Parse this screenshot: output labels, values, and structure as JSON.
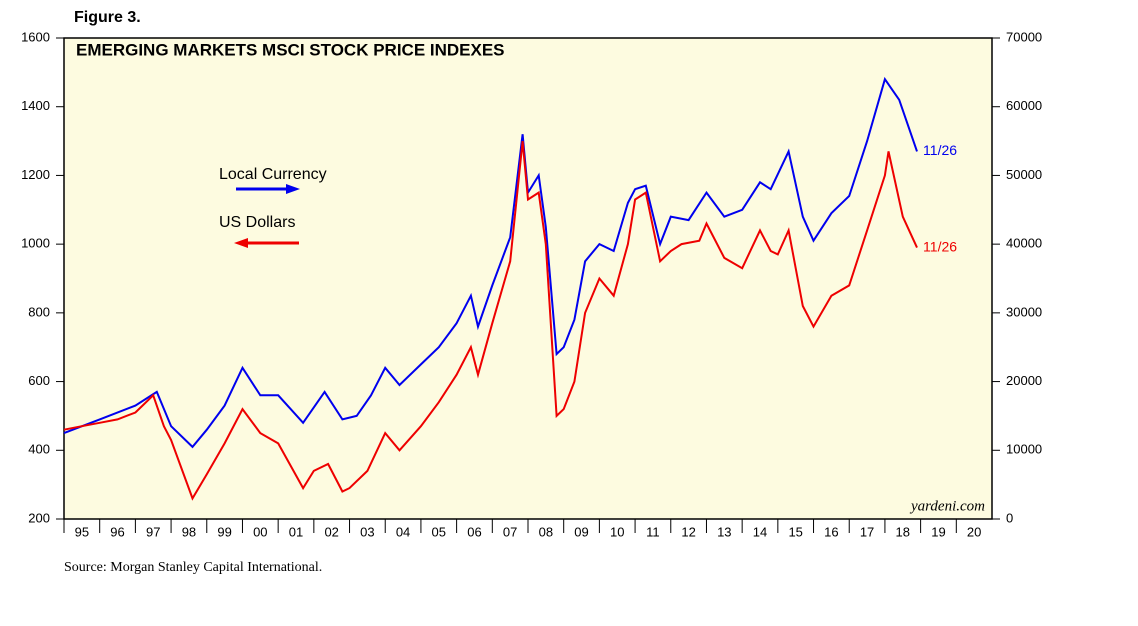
{
  "figure_label": "Figure 3.",
  "source": "Source: Morgan Stanley Capital International.",
  "chart_data": {
    "type": "line",
    "title": "EMERGING MARKETS MSCI STOCK PRICE INDEXES",
    "watermark": "yardeni.com",
    "background": "#fdfbe0",
    "xlim": [
      1995,
      2021
    ],
    "xticks": [
      {
        "value": 1995,
        "label": "95"
      },
      {
        "value": 1996,
        "label": "96"
      },
      {
        "value": 1997,
        "label": "97"
      },
      {
        "value": 1998,
        "label": "98"
      },
      {
        "value": 1999,
        "label": "99"
      },
      {
        "value": 2000,
        "label": "00"
      },
      {
        "value": 2001,
        "label": "01"
      },
      {
        "value": 2002,
        "label": "02"
      },
      {
        "value": 2003,
        "label": "03"
      },
      {
        "value": 2004,
        "label": "04"
      },
      {
        "value": 2005,
        "label": "05"
      },
      {
        "value": 2006,
        "label": "06"
      },
      {
        "value": 2007,
        "label": "07"
      },
      {
        "value": 2008,
        "label": "08"
      },
      {
        "value": 2009,
        "label": "09"
      },
      {
        "value": 2010,
        "label": "10"
      },
      {
        "value": 2011,
        "label": "11"
      },
      {
        "value": 2012,
        "label": "12"
      },
      {
        "value": 2013,
        "label": "13"
      },
      {
        "value": 2014,
        "label": "14"
      },
      {
        "value": 2015,
        "label": "15"
      },
      {
        "value": 2016,
        "label": "16"
      },
      {
        "value": 2017,
        "label": "17"
      },
      {
        "value": 2018,
        "label": "18"
      },
      {
        "value": 2019,
        "label": "19"
      },
      {
        "value": 2020,
        "label": "20"
      }
    ],
    "ylim": [
      200,
      1600
    ],
    "yticks": [
      200,
      400,
      600,
      800,
      1000,
      1200,
      1400,
      1600
    ],
    "y2lim": [
      0,
      70000
    ],
    "y2ticks": [
      0,
      10000,
      20000,
      30000,
      40000,
      50000,
      60000,
      70000
    ],
    "series": [
      {
        "name": "Local Currency",
        "color": "#0000ee",
        "axis": "y2",
        "end_label": "11/26",
        "x": [
          1995.0,
          1996.0,
          1997.0,
          1997.6,
          1998.0,
          1998.6,
          1999.0,
          1999.5,
          2000.0,
          2000.5,
          2001.0,
          2001.7,
          2002.3,
          2002.8,
          2003.2,
          2003.6,
          2004.0,
          2004.4,
          2005.0,
          2005.5,
          2006.0,
          2006.4,
          2006.6,
          2007.0,
          2007.5,
          2007.85,
          2008.0,
          2008.3,
          2008.5,
          2008.8,
          2009.0,
          2009.3,
          2009.6,
          2010.0,
          2010.4,
          2010.8,
          2011.0,
          2011.3,
          2011.7,
          2012.0,
          2012.5,
          2013.0,
          2013.5,
          2014.0,
          2014.5,
          2014.8,
          2015.3,
          2015.7,
          2016.0,
          2016.5,
          2017.0,
          2017.5,
          2018.0,
          2018.4,
          2018.9
        ],
        "values": [
          12500,
          14500,
          16500,
          18500,
          13500,
          10500,
          13000,
          16500,
          22000,
          18000,
          18000,
          14000,
          18500,
          14500,
          15000,
          18000,
          22000,
          19500,
          22500,
          25000,
          28500,
          32500,
          28000,
          34000,
          41000,
          56000,
          47500,
          50000,
          42500,
          24000,
          25000,
          29000,
          37500,
          40000,
          39000,
          46000,
          48000,
          48500,
          40000,
          44000,
          43500,
          47500,
          44000,
          45000,
          49000,
          48000,
          53500,
          44000,
          40500,
          44500,
          47000,
          55000,
          64000,
          61000,
          53500
        ]
      },
      {
        "name": "US Dollars",
        "color": "#ee0000",
        "axis": "y",
        "end_label": "11/26",
        "x": [
          1995.0,
          1995.5,
          1996.0,
          1996.5,
          1997.0,
          1997.5,
          1997.8,
          1998.0,
          1998.6,
          1999.0,
          1999.5,
          2000.0,
          2000.5,
          2001.0,
          2001.7,
          2002.0,
          2002.4,
          2002.8,
          2003.0,
          2003.5,
          2004.0,
          2004.4,
          2005.0,
          2005.5,
          2006.0,
          2006.4,
          2006.6,
          2007.0,
          2007.5,
          2007.85,
          2008.0,
          2008.3,
          2008.5,
          2008.8,
          2009.0,
          2009.3,
          2009.6,
          2010.0,
          2010.4,
          2010.8,
          2011.0,
          2011.3,
          2011.7,
          2012.0,
          2012.3,
          2012.8,
          2013.0,
          2013.5,
          2014.0,
          2014.5,
          2014.8,
          2015.0,
          2015.3,
          2015.7,
          2016.0,
          2016.5,
          2017.0,
          2017.5,
          2018.0,
          2018.1,
          2018.5,
          2018.9
        ],
        "values": [
          460,
          470,
          480,
          490,
          510,
          560,
          470,
          430,
          260,
          330,
          420,
          520,
          450,
          420,
          290,
          340,
          360,
          280,
          290,
          340,
          450,
          400,
          470,
          540,
          620,
          700,
          620,
          770,
          950,
          1300,
          1130,
          1150,
          1000,
          500,
          520,
          600,
          800,
          900,
          850,
          1000,
          1130,
          1150,
          950,
          980,
          1000,
          1010,
          1060,
          960,
          930,
          1040,
          980,
          970,
          1040,
          820,
          760,
          850,
          880,
          1040,
          1200,
          1270,
          1080,
          990
        ]
      }
    ]
  }
}
